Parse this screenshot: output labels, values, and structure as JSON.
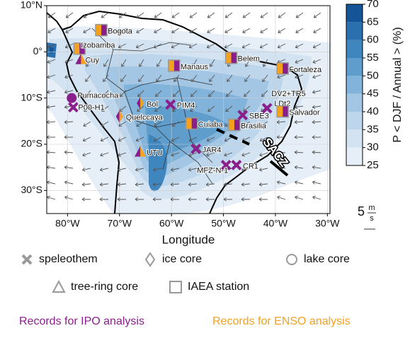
{
  "map": {
    "xlabel": "Longitude",
    "xlim": [
      -84,
      -29.5
    ],
    "ylim": [
      -35,
      10
    ],
    "xticks": [
      {
        "value": -80,
        "label": "80°W"
      },
      {
        "value": -70,
        "label": "70°W"
      },
      {
        "value": -60,
        "label": "60°W"
      },
      {
        "value": -50,
        "label": "50°W"
      },
      {
        "value": -40,
        "label": "40°W"
      },
      {
        "value": -30,
        "label": "30°W"
      }
    ],
    "yticks": [
      {
        "value": 10,
        "label": "10°N"
      },
      {
        "value": 0,
        "label": "0°"
      },
      {
        "value": -10,
        "label": "10°S"
      },
      {
        "value": -20,
        "label": "20°S"
      },
      {
        "value": -30,
        "label": "30°S"
      }
    ],
    "grid": true,
    "colorbar": {
      "label": "P < DJF / Annual > (%)",
      "lim": [
        25,
        70
      ],
      "ticks": [
        25,
        30,
        35,
        40,
        45,
        50,
        55,
        60,
        65,
        70
      ],
      "colors": [
        "#e6eff8",
        "#d3e3f2",
        "#bdd6ec",
        "#a2c6e3",
        "#82b3da",
        "#5f9dcd",
        "#3f86bf",
        "#2a6fae",
        "#155597"
      ]
    },
    "annotation": "SACZ",
    "vector_scale": {
      "value": "5",
      "numerator": "m",
      "denominator": "s"
    },
    "symbol_colors": [
      "#8a1f8c",
      "#f4a11e"
    ],
    "sites": [
      {
        "label": "Bogota",
        "lon": -73.5,
        "lat": 4.7,
        "type": "IAEA station",
        "colors": 2
      },
      {
        "label": "Izobamba",
        "lon": -77.7,
        "lat": 0.7,
        "type": "IAEA station",
        "colors": 2
      },
      {
        "label": "Cuy",
        "lon": -77.4,
        "lat": -1.6,
        "type": "tree-ring core",
        "colors": 2
      },
      {
        "label": "Belem",
        "lon": -48.5,
        "lat": -1.3,
        "type": "IAEA station",
        "colors": 2
      },
      {
        "label": "Manaus",
        "lon": -59.5,
        "lat": -3.0,
        "type": "IAEA station",
        "colors": 2
      },
      {
        "label": "Fortaleza",
        "lon": -38.6,
        "lat": -3.6,
        "type": "IAEA station",
        "colors": 2
      },
      {
        "label": "Pumacocha",
        "lon": -79.2,
        "lat": -10.0,
        "type": "lake core",
        "colors": 1
      },
      {
        "label": "P00-H1",
        "lon": -78.9,
        "lat": -12.0,
        "type": "speleothem",
        "colors": 1
      },
      {
        "label": "Bol",
        "lon": -66.0,
        "lat": -11.1,
        "type": "ice core",
        "colors": 2
      },
      {
        "label": "Quelccaya",
        "lon": -70.0,
        "lat": -14.0,
        "type": "ice core",
        "colors": 2
      },
      {
        "label": "PIM4",
        "lon": -60.2,
        "lat": -11.4,
        "type": "speleothem",
        "colors": 1
      },
      {
        "label": "Cuiaba",
        "lon": -56.1,
        "lat": -15.5,
        "type": "IAEA station",
        "colors": 2
      },
      {
        "label": "Brasilia",
        "lon": -47.9,
        "lat": -15.8,
        "type": "IAEA station",
        "colors": 2
      },
      {
        "label": "SBE3",
        "lon": -46.3,
        "lat": -13.7,
        "type": "speleothem",
        "colors": 1
      },
      {
        "label": "DV2+TR5",
        "lon": -41.6,
        "lat": -12.2,
        "type": "speleothem",
        "colors": 1
      },
      {
        "label": "LDt2",
        "lon": -41.6,
        "lat": -12.2,
        "type": "label",
        "colors": 0
      },
      {
        "label": "Salvador",
        "lon": -38.6,
        "lat": -12.9,
        "type": "IAEA station",
        "colors": 2
      },
      {
        "label": "UTU",
        "lon": -66.0,
        "lat": -21.6,
        "type": "tree-ring core",
        "colors": 2
      },
      {
        "label": "JAR4",
        "lon": -55.3,
        "lat": -21.0,
        "type": "speleothem",
        "colors": 1
      },
      {
        "label": "MFZ-N-1",
        "lon": -49.5,
        "lat": -24.5,
        "type": "speleothem",
        "colors": 1
      },
      {
        "label": "CR1",
        "lon": -47.5,
        "lat": -24.5,
        "type": "speleothem",
        "colors": 1
      }
    ]
  },
  "legend": {
    "items": [
      {
        "label": "speleothem",
        "type": "speleothem"
      },
      {
        "label": "ice core",
        "type": "ice core"
      },
      {
        "label": "lake core",
        "type": "lake core"
      },
      {
        "label": "tree-ring core",
        "type": "tree-ring core"
      },
      {
        "label": "IAEA station",
        "type": "IAEA station"
      }
    ],
    "ipo": "Records for IPO analysis",
    "enso": "Records for ENSO analysis"
  }
}
